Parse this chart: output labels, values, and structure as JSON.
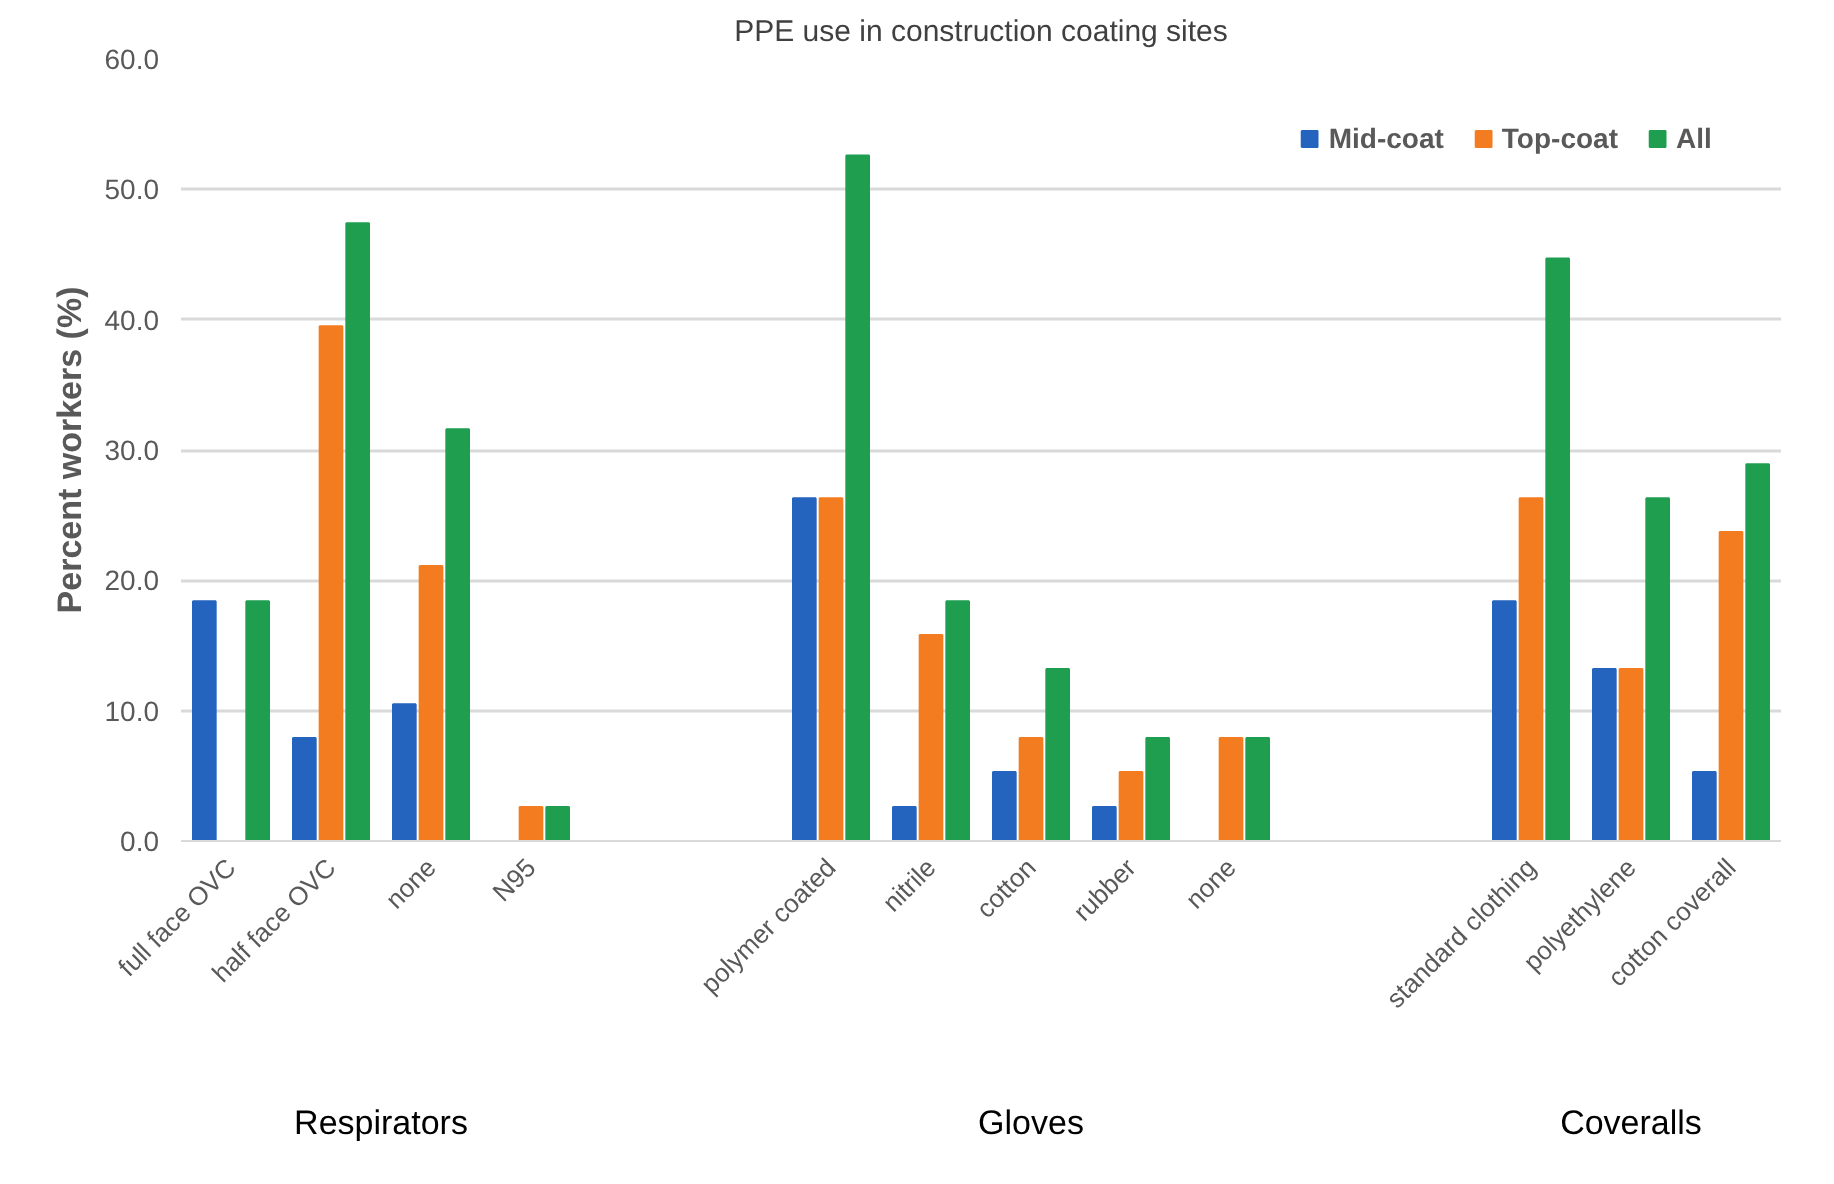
{
  "chart_data": {
    "type": "bar",
    "title": "PPE use in construction coating sites",
    "ylabel": "Percent workers (%)",
    "categories": [
      "full face OVC",
      "half face OVC",
      "none",
      "N95",
      null,
      null,
      "polymer coated",
      "nitrile",
      "cotton",
      "rubber",
      "none",
      null,
      null,
      "standard clothing",
      "polyethylene",
      "cotton coverall"
    ],
    "series": [
      {
        "name": "Mid-coat",
        "color": "#2463be",
        "values": [
          18.4,
          7.9,
          10.5,
          0,
          null,
          null,
          26.3,
          2.6,
          5.3,
          2.6,
          0,
          null,
          null,
          18.4,
          13.2,
          5.3
        ]
      },
      {
        "name": "Top-coat",
        "color": "#f47c20",
        "values": [
          0,
          39.5,
          21.1,
          2.6,
          null,
          null,
          26.3,
          15.8,
          7.9,
          5.3,
          7.9,
          null,
          null,
          26.3,
          13.2,
          23.7
        ]
      },
      {
        "name": "All",
        "color": "#1f9e50",
        "values": [
          18.4,
          47.4,
          31.6,
          2.6,
          null,
          null,
          52.6,
          18.4,
          13.2,
          7.9,
          7.9,
          null,
          null,
          44.7,
          26.3,
          28.9
        ]
      }
    ],
    "ylim": [
      0,
      60
    ],
    "yticks": [
      {
        "value": 0,
        "label": "0.0"
      },
      {
        "value": 10,
        "label": "10.0"
      },
      {
        "value": 20,
        "label": "20.0"
      },
      {
        "value": 30,
        "label": "30.0"
      },
      {
        "value": 40,
        "label": "40.0"
      },
      {
        "value": 50,
        "label": "50.0"
      },
      {
        "value": 60,
        "label": "60.0"
      }
    ],
    "grid": "y",
    "legend": "top right",
    "annotations": [
      "Respirators",
      "Gloves",
      "Coveralls"
    ]
  }
}
